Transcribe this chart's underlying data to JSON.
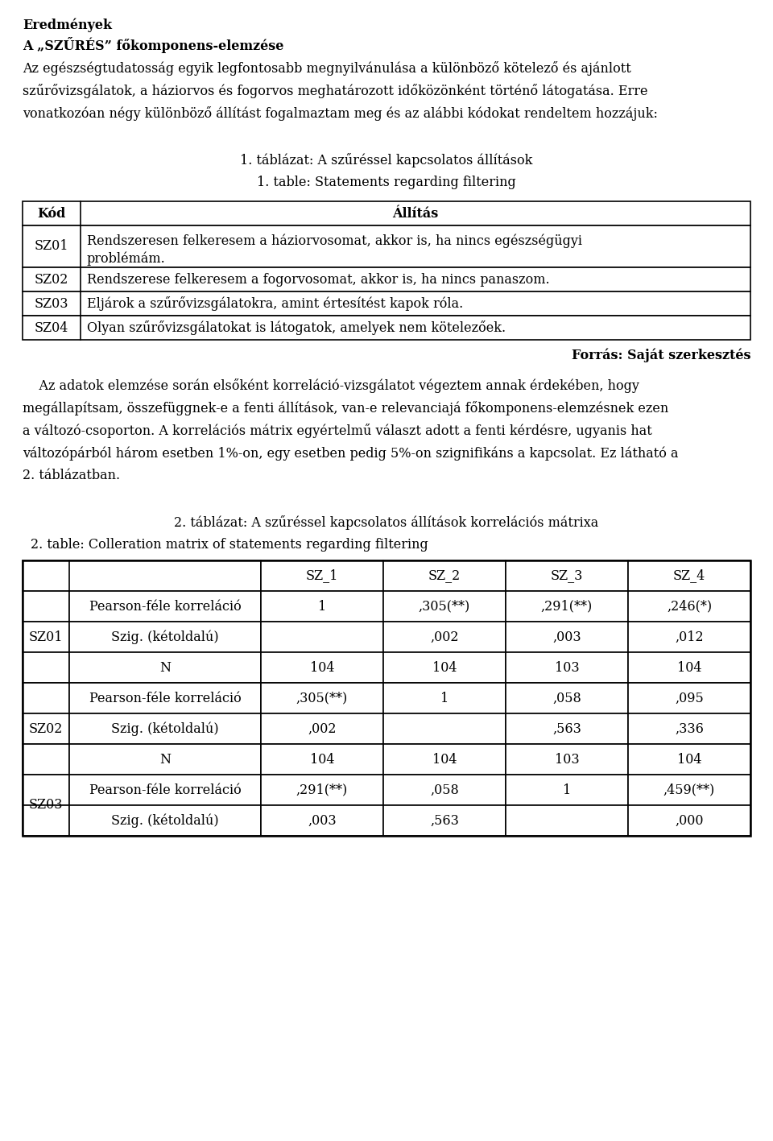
{
  "title_results": "Eredmények",
  "subtitle_bold": "A „SZŰRÉS” főkomponens-elemzése",
  "p1_line1": "Az egészségtudatosság egyik legfontosabb megnyilvánulása a különböző kötelező és ajánlott",
  "p1_line2": "szűrővizsgálatok, a háziorvos és fogorvos meghatározott időközönként történő látogatása. Erre",
  "p1_line3": "vonatkozóan négy különböző állítást fogalmaztam meg és az alábbi kódokat rendeltem hozzájuk:",
  "table1_caption_hu": "1. táblázat: A szűréssel kapcsolatos állítások",
  "table1_caption_en": "1. table: Statements regarding filtering",
  "table1_header": [
    "Kód",
    "Állítás"
  ],
  "table1_row1_code": "SZ01",
  "table1_row1_line1": "Rendszeresen felkeresem a háziorvosomat, akkor is, ha nincs egészségügyi",
  "table1_row1_line2": "problémám.",
  "table1_row2_code": "SZ02",
  "table1_row2_text": "Rendszerese felkeresem a fogorvosomat, akkor is, ha nincs panaszom.",
  "table1_row3_code": "SZ03",
  "table1_row3_text": "Eljárok a szűrővizsgálatokra, amint értesítést kapok róla.",
  "table1_row4_code": "SZ04",
  "table1_row4_text": "Olyan szűrővizsgálatokat is látogatok, amelyek nem kötelezőek.",
  "forras": "Forrás: Saját szerkesztés",
  "p2_line1": "    Az adatok elemzése során elsőként korreláció-vizsgálatot végeztem annak érdekében, hogy",
  "p2_line2": "megállapítsam, összefüggnek-e a fenti állítások, van-e relevanciajá főkomponens-elemzésnek ezen",
  "p2_line3": "a változó-csoporton. A korrelációs mátrix egyértelmű választ adott a fenti kérdésre, ugyanis hat",
  "p2_line4": "változópárból három esetben 1%-on, egy esetben pedig 5%-on szignifikáns a kapcsolat. Ez látható a",
  "p2_line5": "2. táblázatban.",
  "table2_caption_hu": "2. táblázat: A szűréssel kapcsolatos állítások korrelációs mátrixa",
  "table2_caption_en": "2. table: Colleration matrix of statements regarding filtering",
  "table2_col_headers": [
    "SZ_1",
    "SZ_2",
    "SZ_3",
    "SZ_4"
  ],
  "table2_data": [
    [
      "SZ01",
      "Pearson-féle korreláció",
      "1",
      ",305(**)",
      ",291(**)",
      ",246(*)"
    ],
    [
      "",
      "Szig. (kétoldalú)",
      "",
      ",002",
      ",003",
      ",012"
    ],
    [
      "",
      "N",
      "104",
      "104",
      "103",
      "104"
    ],
    [
      "SZ02",
      "Pearson-féle korreláció",
      ",305(**)",
      "1",
      ",058",
      ",095"
    ],
    [
      "",
      "Szig. (kétoldalú)",
      ",002",
      "",
      ",563",
      ",336"
    ],
    [
      "",
      "N",
      "104",
      "104",
      "103",
      "104"
    ],
    [
      "SZ03",
      "Pearson-féle korreláció",
      ",291(**)",
      ",058",
      "1",
      ",459(**)"
    ],
    [
      "",
      "Szig. (kétoldalú)",
      ",003",
      ",563",
      "",
      ",000"
    ]
  ],
  "table2_group_spans": [
    [
      0,
      3
    ],
    [
      3,
      6
    ],
    [
      6,
      8
    ]
  ],
  "table2_group_labels": [
    "SZ01",
    "SZ02",
    "SZ03"
  ],
  "bg_color": "#ffffff"
}
